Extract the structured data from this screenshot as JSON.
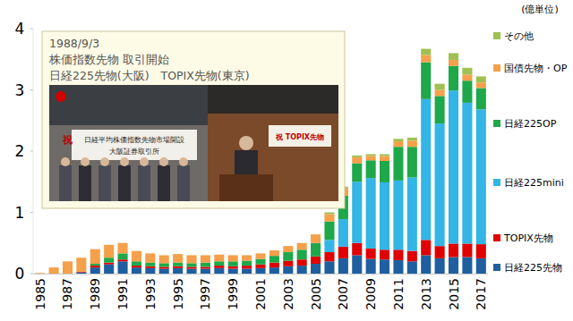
{
  "chart_data": {
    "type": "bar",
    "stacked": true,
    "grid": false,
    "legend": "right",
    "y_label": "(億単位)",
    "ylim": [
      0,
      4
    ],
    "yticks": [
      0,
      1,
      2,
      3,
      4
    ],
    "categories": [
      "1985",
      null,
      "1987",
      null,
      "1989",
      null,
      "1991",
      null,
      "1993",
      null,
      "1995",
      null,
      "1997",
      null,
      "1999",
      null,
      "2001",
      null,
      "2003",
      null,
      "2005",
      null,
      "2007",
      null,
      "2009",
      null,
      "2011",
      null,
      "2013",
      null,
      "2015",
      null,
      "2017"
    ],
    "series": [
      {
        "name": "日経225先物",
        "color": "#1f5fa0",
        "values": [
          0,
          0,
          0,
          0.02,
          0.1,
          0.15,
          0.2,
          0.1,
          0.09,
          0.08,
          0.09,
          0.08,
          0.08,
          0.09,
          0.08,
          0.08,
          0.09,
          0.1,
          0.12,
          0.13,
          0.16,
          0.2,
          0.25,
          0.3,
          0.24,
          0.23,
          0.22,
          0.2,
          0.3,
          0.25,
          0.27,
          0.27,
          0.25
        ]
      },
      {
        "name": "TOPIX先物",
        "color": "#e00000",
        "values": [
          0,
          0,
          0,
          0.01,
          0.03,
          0.03,
          0.03,
          0.03,
          0.03,
          0.03,
          0.03,
          0.03,
          0.03,
          0.04,
          0.04,
          0.05,
          0.06,
          0.08,
          0.09,
          0.1,
          0.12,
          0.15,
          0.19,
          0.2,
          0.17,
          0.16,
          0.17,
          0.17,
          0.25,
          0.2,
          0.22,
          0.22,
          0.23
        ]
      },
      {
        "name": "日経225mini",
        "color": "#33b5e5",
        "values": [
          0,
          0,
          0,
          0,
          0,
          0,
          0,
          0,
          0,
          0,
          0,
          0,
          0,
          0,
          0,
          0,
          0,
          0,
          0,
          0,
          0,
          0.2,
          0.45,
          1.0,
          1.15,
          1.1,
          1.13,
          1.2,
          2.3,
          2.0,
          2.5,
          2.3,
          2.2
        ]
      },
      {
        "name": "日経225OP",
        "color": "#1ea84a",
        "values": [
          0,
          0,
          0,
          0,
          0.03,
          0.08,
          0.1,
          0.07,
          0.06,
          0.06,
          0.06,
          0.06,
          0.07,
          0.07,
          0.08,
          0.08,
          0.09,
          0.11,
          0.14,
          0.16,
          0.22,
          0.3,
          0.38,
          0.3,
          0.29,
          0.35,
          0.55,
          0.5,
          0.6,
          0.45,
          0.4,
          0.36,
          0.35
        ]
      },
      {
        "name": "国債先物・OP",
        "color": "#f5a04a",
        "values": [
          0.01,
          0.1,
          0.2,
          0.23,
          0.24,
          0.21,
          0.17,
          0.17,
          0.15,
          0.13,
          0.14,
          0.13,
          0.12,
          0.11,
          0.1,
          0.09,
          0.09,
          0.09,
          0.1,
          0.11,
          0.14,
          0.12,
          0.12,
          0.1,
          0.07,
          0.08,
          0.09,
          0.1,
          0.12,
          0.1,
          0.1,
          0.1,
          0.09
        ]
      },
      {
        "name": "その他",
        "color": "#a0c050",
        "values": [
          0,
          0,
          0,
          0,
          0,
          0,
          0,
          0,
          0,
          0,
          0,
          0,
          0,
          0,
          0,
          0,
          0,
          0,
          0,
          0,
          0,
          0.03,
          0.03,
          0.03,
          0.03,
          0.03,
          0.04,
          0.05,
          0.1,
          0.1,
          0.11,
          0.11,
          0.1
        ]
      }
    ],
    "annotation": {
      "lines": [
        "1988/9/3",
        "株価指数先物 取引開始",
        "日経225先物(大阪)　TOPIX先物(東京)"
      ],
      "photo_texts": [
        "祝",
        "日経平均株価指数先物市場開設",
        "大阪証券取引所",
        "祝 TOPIX先物"
      ]
    }
  }
}
